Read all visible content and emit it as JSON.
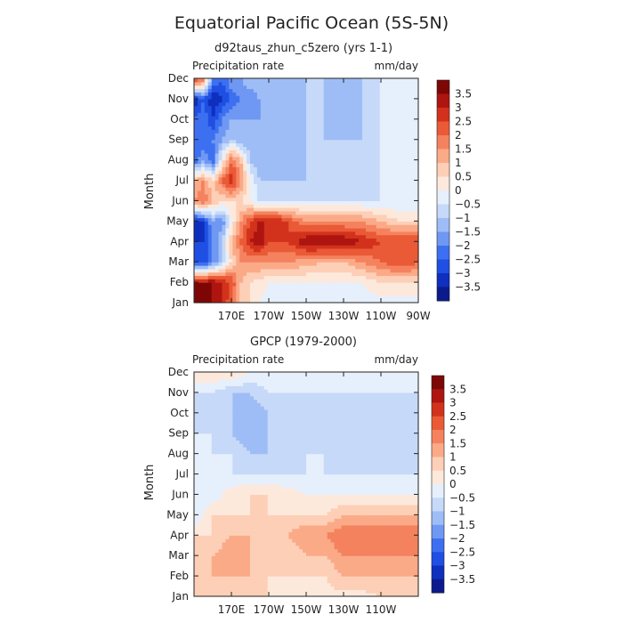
{
  "title": "Equatorial Pacific Ocean (5S-5N)",
  "colors": [
    "#0b1a8c",
    "#0f2fbe",
    "#1f4fe3",
    "#3d70f0",
    "#6f98f3",
    "#9ebdf6",
    "#c6d9f9",
    "#e6effc",
    "#fde9dc",
    "#fdcfb6",
    "#fbaa88",
    "#f5825e",
    "#ea5a37",
    "#d2321c",
    "#ae1510",
    "#7d0704"
  ],
  "chart_data": [
    {
      "type": "heatmap",
      "subtitle": "d92taus_zhun_c5zero (yrs 1-1)",
      "variable": "Precipitation rate",
      "units": "mm/day",
      "ylabel": "Month",
      "months": [
        "Jan",
        "Feb",
        "Mar",
        "Apr",
        "May",
        "Jun",
        "Jul",
        "Aug",
        "Sep",
        "Oct",
        "Nov",
        "Dec"
      ],
      "x_tick_labels": [
        "170E",
        "170W",
        "150W",
        "130W",
        "110W",
        "90W"
      ],
      "lon_range": [
        150,
        270
      ],
      "legend_levels": [
        "3.5",
        "3",
        "2.5",
        "2",
        "1.5",
        "1",
        "0.5",
        "0",
        "-0.5",
        "-1",
        "-1.5",
        "-2",
        "-2.5",
        "-3",
        "-3.5"
      ],
      "lons": [
        150,
        155,
        160,
        165,
        170,
        175,
        180,
        185,
        190,
        195,
        200,
        210,
        220,
        230,
        240,
        250,
        260,
        270
      ],
      "values": [
        [
          3.5,
          3.5,
          3.5,
          3,
          2,
          1,
          0.5,
          0,
          -0.3,
          -0.3,
          -0.3,
          -0.3,
          -0.3,
          -0.3,
          -0.3,
          -0.3,
          -0.3,
          -0.3
        ],
        [
          3.5,
          3.5,
          3.5,
          3,
          2.5,
          1,
          0.5,
          0.3,
          0,
          0,
          0,
          0,
          0,
          0,
          0,
          0.5,
          0.5,
          0.5
        ],
        [
          -2.5,
          -3,
          -2,
          -1,
          0.5,
          1.5,
          1.5,
          1.5,
          1.5,
          1.5,
          1.5,
          1.2,
          1,
          1,
          1.5,
          2,
          2.5,
          2
        ],
        [
          -3,
          -3,
          -2,
          -1,
          1,
          2,
          3,
          3.5,
          2.5,
          2.5,
          2.5,
          3.5,
          3.5,
          3.5,
          3,
          2.5,
          2.5,
          2.5
        ],
        [
          -3.5,
          -3,
          -1.5,
          -2,
          0,
          1.5,
          2.5,
          3,
          3,
          3,
          2.5,
          1.5,
          1.5,
          1.5,
          1.5,
          1,
          0.5,
          0.5
        ],
        [
          1.5,
          2,
          1,
          0.5,
          0.5,
          0.5,
          0,
          -0.5,
          -0.5,
          -0.5,
          -0.5,
          -0.5,
          -0.5,
          -0.5,
          -0.5,
          -0.5,
          -0.5,
          -0.5
        ],
        [
          1,
          1.5,
          0.5,
          2,
          3,
          1.5,
          0,
          -1,
          -1,
          -1,
          -1,
          -1,
          -1,
          -1,
          -1,
          -0.5,
          -0.5,
          -0.5
        ],
        [
          -2.5,
          -1.5,
          -2.5,
          0,
          2,
          1,
          -1,
          -1.5,
          -1.5,
          -1.5,
          -1.5,
          -1,
          -1,
          -1,
          -1,
          -0.5,
          -0.5,
          -0.5
        ],
        [
          -2,
          -2.5,
          -2,
          -1.5,
          -1,
          -1.5,
          -1.5,
          -1.5,
          -1.5,
          -1.5,
          -1.5,
          -1,
          -1,
          -1,
          -1,
          -0.5,
          -0.5,
          -0.5
        ],
        [
          -2.5,
          -2,
          -3,
          -2,
          -1.5,
          -1.5,
          -1.5,
          -1.5,
          -1.5,
          -1.5,
          -1.5,
          -1,
          -1,
          -1.5,
          -1,
          -0.5,
          -0.5,
          -0.5
        ],
        [
          -3.5,
          -2.5,
          -3.5,
          -3,
          -2.5,
          -2,
          -2,
          -1.5,
          -1.5,
          -1.5,
          -1.5,
          -1,
          -1,
          -1.5,
          -1,
          -0.5,
          -0.5,
          -0.5
        ],
        [
          3,
          2,
          -2,
          -2.5,
          -1.5,
          -1.5,
          -1,
          -1,
          -1,
          -1,
          -1,
          -1,
          -1,
          -1,
          -1,
          -0.5,
          -0.5,
          -0.5
        ]
      ]
    },
    {
      "type": "heatmap",
      "subtitle": "GPCP (1979-2000)",
      "variable": "Precipitation rate",
      "units": "mm/day",
      "ylabel": "Month",
      "months": [
        "Jan",
        "Feb",
        "Mar",
        "Apr",
        "May",
        "Jun",
        "Jul",
        "Aug",
        "Sep",
        "Oct",
        "Nov",
        "Dec"
      ],
      "x_tick_labels": [
        "170E",
        "170W",
        "150W",
        "130W",
        "110W"
      ],
      "lon_range": [
        150,
        270
      ],
      "legend_levels": [
        "3.5",
        "3",
        "2.5",
        "2",
        "1.5",
        "1",
        "0.5",
        "0",
        "-0.5",
        "-1",
        "-1.5",
        "-2",
        "-2.5",
        "-3",
        "-3.5"
      ],
      "lons": [
        150,
        160,
        170,
        180,
        190,
        200,
        210,
        220,
        230,
        240,
        250,
        260,
        270
      ],
      "values": [
        [
          0.5,
          0.5,
          1,
          0.5,
          0.5,
          0.3,
          0.3,
          0.3,
          0.3,
          0.3,
          0.5,
          0.5,
          0.5
        ],
        [
          0.5,
          1,
          1,
          1,
          0.5,
          0.5,
          0.5,
          0.5,
          1,
          1,
          1,
          1,
          1
        ],
        [
          0.5,
          1,
          1.5,
          1,
          1,
          0.5,
          1,
          1,
          1.5,
          1.5,
          1.5,
          1.5,
          1.5
        ],
        [
          0.5,
          0.5,
          1,
          1,
          0.5,
          1,
          1.5,
          1.5,
          2,
          2,
          2,
          2,
          2
        ],
        [
          -0.5,
          0.5,
          0.5,
          0.5,
          0.5,
          0.5,
          0.5,
          0.5,
          1,
          1,
          1,
          1,
          1
        ],
        [
          -0.5,
          -0.3,
          0.3,
          0.5,
          0.5,
          0.3,
          0,
          0,
          0,
          0,
          0,
          0,
          0
        ],
        [
          -0.5,
          -0.5,
          -0.5,
          -0.5,
          -0.5,
          -0.5,
          -0.5,
          -0.5,
          -0.5,
          -0.5,
          -0.5,
          -0.5,
          -0.5
        ],
        [
          -0.5,
          -0.5,
          -0.5,
          -1,
          -1,
          -1,
          -0.5,
          -0.5,
          -1,
          -1,
          -1,
          -1,
          -0.5
        ],
        [
          -0.5,
          -0.5,
          -1,
          -1.5,
          -1,
          -1,
          -0.5,
          -1,
          -1,
          -1,
          -1,
          -1,
          -0.5
        ],
        [
          -0.5,
          -1,
          -1,
          -1.5,
          -1,
          -1,
          -0.5,
          -1,
          -1,
          -1,
          -1,
          -1,
          -0.5
        ],
        [
          -0.5,
          -0.5,
          -1,
          -1,
          -0.5,
          -0.5,
          -0.5,
          -0.5,
          -0.5,
          -0.5,
          -0.5,
          -0.5,
          -0.5
        ],
        [
          0.5,
          0.5,
          0.5,
          0,
          0,
          0,
          0,
          0,
          0,
          0,
          0,
          0,
          0
        ]
      ]
    }
  ]
}
